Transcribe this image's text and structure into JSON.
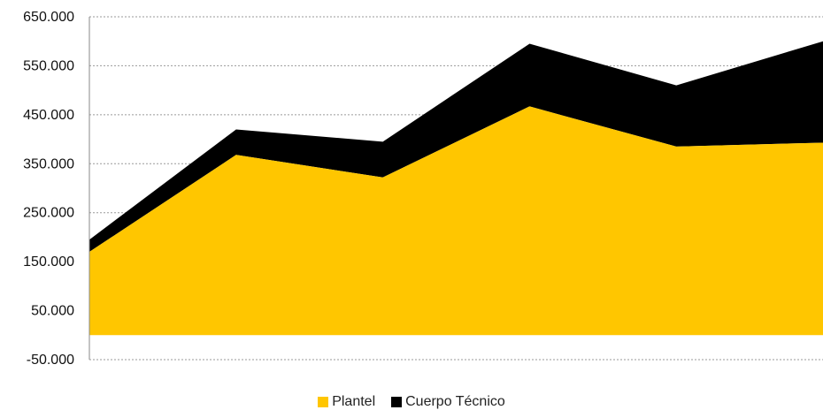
{
  "chart_data": {
    "type": "area",
    "stacked": true,
    "title": "",
    "xlabel": "",
    "ylabel": "",
    "x": [
      1,
      2,
      3,
      4,
      5,
      6
    ],
    "ylim": [
      -50000,
      650000
    ],
    "yticks": [
      -50000,
      50000,
      150000,
      250000,
      350000,
      450000,
      550000,
      650000
    ],
    "ytick_labels": [
      "-50.000",
      "50.000",
      "150.000",
      "250.000",
      "350.000",
      "450.000",
      "550.000",
      "650.000"
    ],
    "grid": "horizontal dashed",
    "legend_position": "bottom",
    "series": [
      {
        "name": "Plantel",
        "color": "#FFC600",
        "values": [
          170000,
          368000,
          322000,
          467000,
          385000,
          393000
        ]
      },
      {
        "name": "Cuerpo Técnico",
        "color": "#000000",
        "values": [
          25000,
          52000,
          73000,
          128000,
          125000,
          207000
        ]
      }
    ]
  }
}
